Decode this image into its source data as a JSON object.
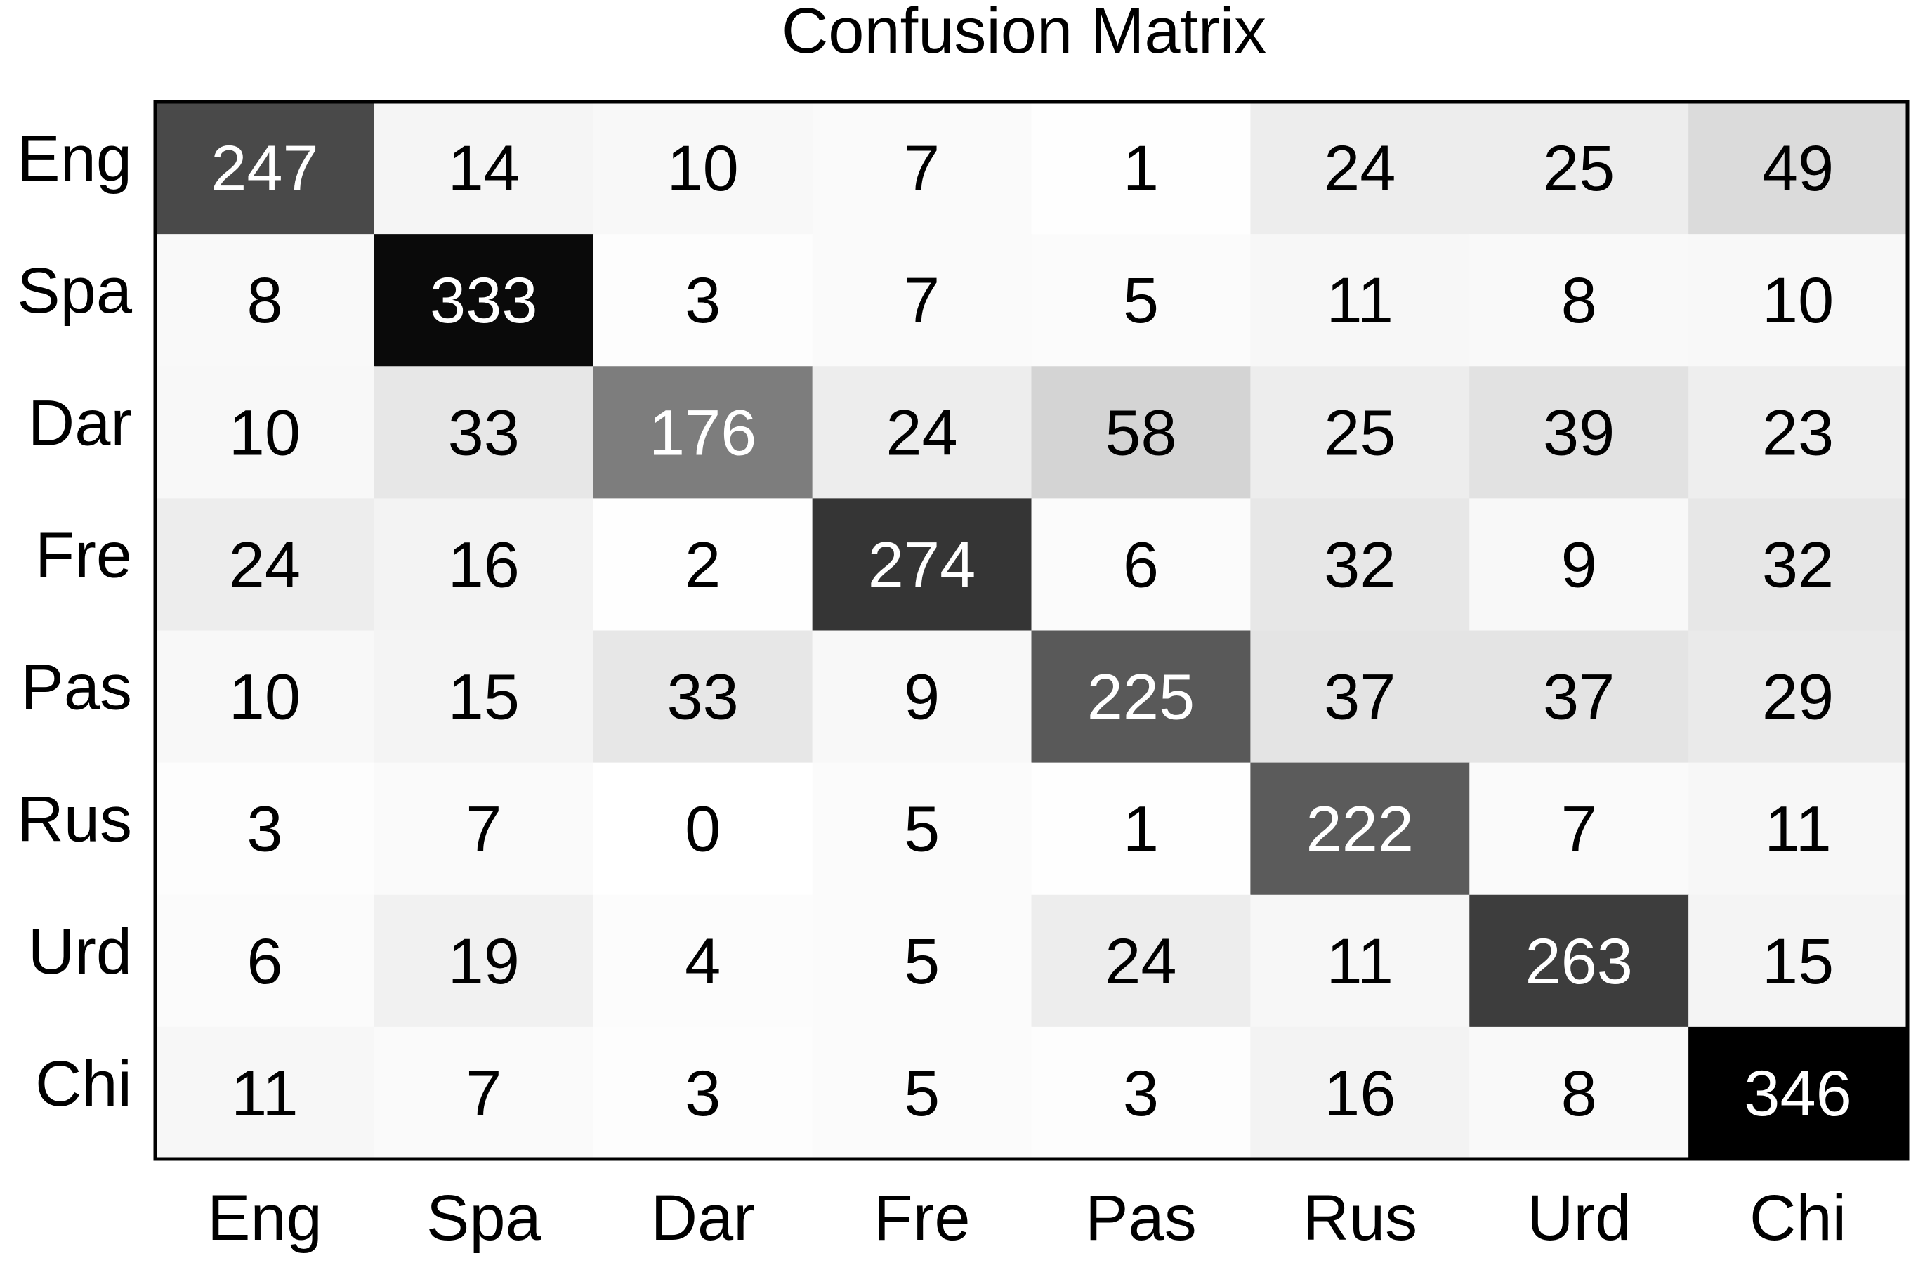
{
  "chart_data": {
    "type": "heatmap",
    "title": "Confusion Matrix",
    "x_categories": [
      "Eng",
      "Spa",
      "Dar",
      "Fre",
      "Pas",
      "Rus",
      "Urd",
      "Chi"
    ],
    "y_categories": [
      "Eng",
      "Spa",
      "Dar",
      "Fre",
      "Pas",
      "Rus",
      "Urd",
      "Chi"
    ],
    "values": [
      [
        247,
        14,
        10,
        7,
        1,
        24,
        25,
        49
      ],
      [
        8,
        333,
        3,
        7,
        5,
        11,
        8,
        10
      ],
      [
        10,
        33,
        176,
        24,
        58,
        25,
        39,
        23
      ],
      [
        24,
        16,
        2,
        274,
        6,
        32,
        9,
        32
      ],
      [
        10,
        15,
        33,
        9,
        225,
        37,
        37,
        29
      ],
      [
        3,
        7,
        0,
        5,
        1,
        222,
        7,
        11
      ],
      [
        6,
        19,
        4,
        5,
        24,
        11,
        263,
        15
      ],
      [
        11,
        7,
        3,
        5,
        3,
        16,
        8,
        346
      ]
    ],
    "colormap": "gray-reversed",
    "color_low": "#ffffff",
    "color_high": "#000000",
    "legend": "none",
    "grid": false
  }
}
